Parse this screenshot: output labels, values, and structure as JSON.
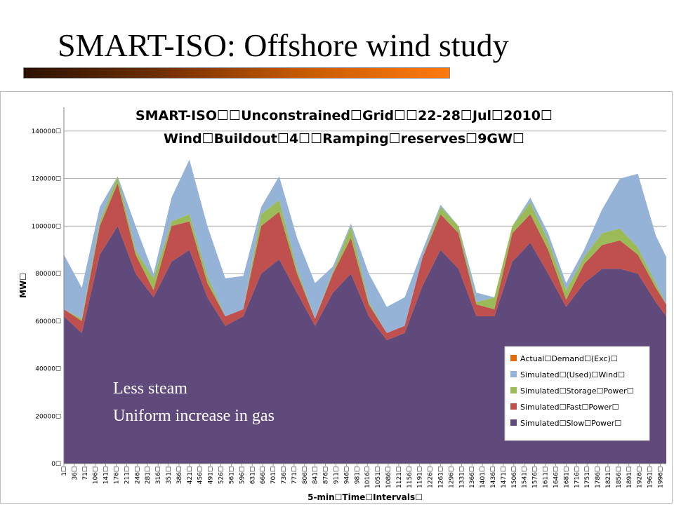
{
  "slide": {
    "title": "SMART-ISO: Offshore wind study"
  },
  "annotation": {
    "line1": "Less steam",
    "line2": "Uniform increase in gas"
  },
  "chart_data": {
    "type": "area",
    "stacked": true,
    "title_line1": "SMART-ISO☐☐Unconstrained☐Grid☐☐22-28☐Jul☐2010☐",
    "title_line2": "Wind☐Buildout☐4☐☐Ramping☐reserves☐9GW☐",
    "xlabel": "5-min☐Time☐Intervals☐",
    "ylabel": "MW☐",
    "ylim": [
      0,
      150000
    ],
    "y_ticks": [
      "0☐",
      "20000☐",
      "40000☐",
      "60000☐",
      "80000☐",
      "100000☐",
      "120000☐",
      "140000☐"
    ],
    "x_tick_labels": [
      "1☐",
      "36☐",
      "71☐",
      "106☐",
      "141☐",
      "176☐",
      "211☐",
      "246☐",
      "281☐",
      "316☐",
      "351☐",
      "386☐",
      "421☐",
      "456☐",
      "491☐",
      "526☐",
      "561☐",
      "596☐",
      "631☐",
      "666☐",
      "701☐",
      "736☐",
      "771☐",
      "806☐",
      "841☐",
      "876☐",
      "911☐",
      "946☐",
      "981☐",
      "1016☐",
      "1051☐",
      "1086☐",
      "1121☐",
      "1156☐",
      "1191☐",
      "1226☐",
      "1261☐",
      "1296☐",
      "1331☐",
      "1366☐",
      "1401☐",
      "1436☐",
      "1471☐",
      "1506☐",
      "1541☐",
      "1576☐",
      "1611☐",
      "1646☐",
      "1681☐",
      "1716☐",
      "1751☐",
      "1786☐",
      "1821☐",
      "1856☐",
      "1891☐",
      "1926☐",
      "1961☐",
      "1996☐"
    ],
    "x": [
      1,
      61,
      121,
      181,
      241,
      301,
      361,
      421,
      481,
      541,
      601,
      661,
      721,
      781,
      841,
      901,
      961,
      1021,
      1081,
      1141,
      1201,
      1261,
      1321,
      1381,
      1441,
      1501,
      1561,
      1621,
      1681,
      1741,
      1801,
      1861,
      1921,
      1981,
      2016
    ],
    "legend": {
      "position": "bottom-right",
      "entries": [
        {
          "label": "Actual☐Demand☐(Exc)☐",
          "color": "#e36c09"
        },
        {
          "label": "Simulated☐(Used)☐Wind☐",
          "color": "#95b3d7"
        },
        {
          "label": "Simulated☐Storage☐Power☐",
          "color": "#9bbb59"
        },
        {
          "label": "Simulated☐Fast☐Power☐",
          "color": "#c0504d"
        },
        {
          "label": "Simulated☐Slow☐Power☐",
          "color": "#604a7b"
        }
      ]
    },
    "series": [
      {
        "name": "Simulated☐Slow☐Power☐",
        "color": "#604a7b",
        "values": [
          62000,
          55000,
          88000,
          100000,
          80000,
          70000,
          85000,
          90000,
          70000,
          58000,
          62000,
          80000,
          86000,
          72000,
          58000,
          72000,
          80000,
          62000,
          52000,
          55000,
          75000,
          90000,
          82000,
          62000,
          62000,
          85000,
          93000,
          80000,
          66000,
          76000,
          82000,
          82000,
          80000,
          68000,
          62000
        ]
      },
      {
        "name": "Simulated☐Fast☐Power☐",
        "color": "#c0504d",
        "values": [
          3000,
          5000,
          12000,
          18000,
          8000,
          3000,
          15000,
          12000,
          6000,
          4000,
          3000,
          20000,
          20000,
          8000,
          3000,
          8000,
          15000,
          5000,
          3000,
          3000,
          12000,
          15000,
          15000,
          5000,
          3000,
          12000,
          12000,
          10000,
          3000,
          8000,
          10000,
          12000,
          8000,
          6000,
          5000
        ]
      },
      {
        "name": "Simulated☐Storage☐Power☐",
        "color": "#9bbb59",
        "values": [
          0,
          1000,
          2000,
          3000,
          2000,
          5000,
          2000,
          3000,
          3000,
          0,
          0,
          5000,
          5000,
          2000,
          0,
          1000,
          5000,
          1000,
          0,
          0,
          0,
          3000,
          3000,
          1000,
          5000,
          3000,
          5000,
          4000,
          4000,
          3000,
          5000,
          5000,
          3000,
          2000,
          0
        ]
      },
      {
        "name": "Simulated☐(Used)☐Wind☐",
        "color": "#95b3d7",
        "values": [
          23000,
          13000,
          6000,
          0,
          10000,
          2000,
          10000,
          23000,
          21000,
          16000,
          14000,
          3000,
          10000,
          13000,
          15000,
          2000,
          1000,
          12000,
          11000,
          12000,
          3000,
          1000,
          0,
          4000,
          0,
          0,
          2000,
          3000,
          3000,
          3000,
          10000,
          21000,
          31000,
          20000,
          20000
        ]
      },
      {
        "name": "Actual☐Demand☐(Exc)☐",
        "color": "#e36c09",
        "values": [
          0,
          0,
          0,
          0,
          0,
          0,
          0,
          0,
          0,
          0,
          0,
          0,
          0,
          0,
          0,
          0,
          0,
          0,
          0,
          0,
          0,
          0,
          0,
          0,
          0,
          0,
          0,
          0,
          0,
          0,
          0,
          0,
          0,
          0,
          0
        ]
      }
    ]
  }
}
